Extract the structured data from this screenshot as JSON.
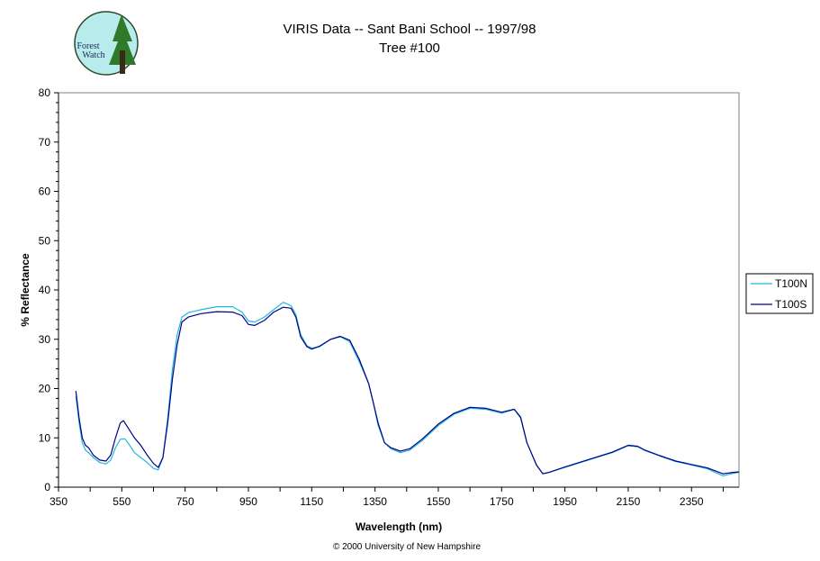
{
  "colors": {
    "series_n": "#22b8d8",
    "series_s": "#00008b",
    "logo_bg": "#b8ecec",
    "tree": "#2f7a2a"
  },
  "logo": {
    "line1": "Forest",
    "line2": "Watch"
  },
  "footer": {
    "copyright": "© 2000 University of New Hampshire"
  },
  "chart_data": {
    "type": "line",
    "title": "VIRIS Data -- Sant Bani School -- 1997/98",
    "subtitle": "Tree #100",
    "xlabel": "Wavelength (nm)",
    "ylabel": "% Reflectance",
    "xlim": [
      350,
      2500
    ],
    "ylim": [
      0,
      80
    ],
    "x_ticks": [
      350,
      550,
      750,
      950,
      1150,
      1350,
      1550,
      1750,
      1950,
      2150,
      2350
    ],
    "y_ticks": [
      0,
      10,
      20,
      30,
      40,
      50,
      60,
      70,
      80
    ],
    "legend_position": "right",
    "grid": false,
    "series": [
      {
        "name": "T100N",
        "color": "#22b8d8",
        "points": [
          [
            405,
            18.5
          ],
          [
            415,
            13
          ],
          [
            425,
            9
          ],
          [
            435,
            7.5
          ],
          [
            445,
            7
          ],
          [
            460,
            6
          ],
          [
            480,
            5
          ],
          [
            500,
            4.7
          ],
          [
            515,
            5.5
          ],
          [
            530,
            8
          ],
          [
            545,
            9.7
          ],
          [
            560,
            9.8
          ],
          [
            575,
            8.5
          ],
          [
            590,
            7
          ],
          [
            610,
            6
          ],
          [
            630,
            5
          ],
          [
            650,
            3.8
          ],
          [
            665,
            3.5
          ],
          [
            680,
            6
          ],
          [
            695,
            14
          ],
          [
            710,
            24
          ],
          [
            725,
            31
          ],
          [
            740,
            34.5
          ],
          [
            760,
            35.4
          ],
          [
            800,
            36
          ],
          [
            850,
            36.6
          ],
          [
            900,
            36.6
          ],
          [
            930,
            35.5
          ],
          [
            950,
            33.7
          ],
          [
            970,
            33.5
          ],
          [
            1000,
            34.5
          ],
          [
            1030,
            36
          ],
          [
            1060,
            37.5
          ],
          [
            1085,
            36.8
          ],
          [
            1100,
            35
          ],
          [
            1115,
            31
          ],
          [
            1135,
            28.7
          ],
          [
            1150,
            28.2
          ],
          [
            1175,
            28.5
          ],
          [
            1210,
            30
          ],
          [
            1240,
            30.5
          ],
          [
            1270,
            29.5
          ],
          [
            1300,
            25.5
          ],
          [
            1330,
            21
          ],
          [
            1345,
            17
          ],
          [
            1360,
            12.5
          ],
          [
            1380,
            9
          ],
          [
            1400,
            7.8
          ],
          [
            1430,
            7
          ],
          [
            1460,
            7.5
          ],
          [
            1500,
            9.5
          ],
          [
            1550,
            12.5
          ],
          [
            1600,
            14.8
          ],
          [
            1650,
            16
          ],
          [
            1700,
            15.8
          ],
          [
            1750,
            15
          ],
          [
            1790,
            15.8
          ],
          [
            1810,
            14
          ],
          [
            1830,
            9
          ],
          [
            1860,
            4.5
          ],
          [
            1880,
            2.8
          ],
          [
            1900,
            3
          ],
          [
            1950,
            4
          ],
          [
            2000,
            5
          ],
          [
            2050,
            6
          ],
          [
            2100,
            7
          ],
          [
            2150,
            8.4
          ],
          [
            2180,
            8.2
          ],
          [
            2200,
            7.5
          ],
          [
            2250,
            6.3
          ],
          [
            2300,
            5.2
          ],
          [
            2350,
            4.5
          ],
          [
            2400,
            3.7
          ],
          [
            2450,
            2.3
          ],
          [
            2480,
            2.8
          ],
          [
            2500,
            3
          ]
        ]
      },
      {
        "name": "T100S",
        "color": "#00008b",
        "points": [
          [
            405,
            19.5
          ],
          [
            415,
            14
          ],
          [
            425,
            10
          ],
          [
            435,
            8.5
          ],
          [
            445,
            8
          ],
          [
            460,
            6.5
          ],
          [
            480,
            5.5
          ],
          [
            500,
            5.3
          ],
          [
            515,
            6.5
          ],
          [
            530,
            10
          ],
          [
            545,
            13
          ],
          [
            555,
            13.5
          ],
          [
            570,
            12
          ],
          [
            590,
            10
          ],
          [
            610,
            8.5
          ],
          [
            630,
            6.5
          ],
          [
            650,
            4.8
          ],
          [
            665,
            4
          ],
          [
            680,
            6
          ],
          [
            695,
            13
          ],
          [
            710,
            22
          ],
          [
            725,
            29
          ],
          [
            740,
            33.5
          ],
          [
            760,
            34.5
          ],
          [
            800,
            35.2
          ],
          [
            850,
            35.6
          ],
          [
            900,
            35.5
          ],
          [
            930,
            34.8
          ],
          [
            950,
            33
          ],
          [
            970,
            32.8
          ],
          [
            1000,
            33.8
          ],
          [
            1030,
            35.5
          ],
          [
            1060,
            36.5
          ],
          [
            1085,
            36.3
          ],
          [
            1100,
            34.5
          ],
          [
            1115,
            30.5
          ],
          [
            1135,
            28.5
          ],
          [
            1150,
            28
          ],
          [
            1175,
            28.6
          ],
          [
            1210,
            30
          ],
          [
            1240,
            30.6
          ],
          [
            1270,
            29.8
          ],
          [
            1300,
            26
          ],
          [
            1330,
            21
          ],
          [
            1345,
            17
          ],
          [
            1360,
            13
          ],
          [
            1380,
            9
          ],
          [
            1400,
            8
          ],
          [
            1430,
            7.3
          ],
          [
            1460,
            7.8
          ],
          [
            1500,
            9.8
          ],
          [
            1550,
            12.8
          ],
          [
            1600,
            15
          ],
          [
            1650,
            16.2
          ],
          [
            1700,
            16
          ],
          [
            1750,
            15.2
          ],
          [
            1790,
            15.8
          ],
          [
            1810,
            14.2
          ],
          [
            1830,
            9
          ],
          [
            1860,
            4.5
          ],
          [
            1880,
            2.7
          ],
          [
            1900,
            3
          ],
          [
            1950,
            4.1
          ],
          [
            2000,
            5.1
          ],
          [
            2050,
            6.1
          ],
          [
            2100,
            7.1
          ],
          [
            2150,
            8.5
          ],
          [
            2180,
            8.3
          ],
          [
            2200,
            7.6
          ],
          [
            2250,
            6.4
          ],
          [
            2300,
            5.3
          ],
          [
            2350,
            4.6
          ],
          [
            2400,
            3.9
          ],
          [
            2450,
            2.7
          ],
          [
            2480,
            3
          ],
          [
            2500,
            3.1
          ]
        ]
      }
    ]
  }
}
